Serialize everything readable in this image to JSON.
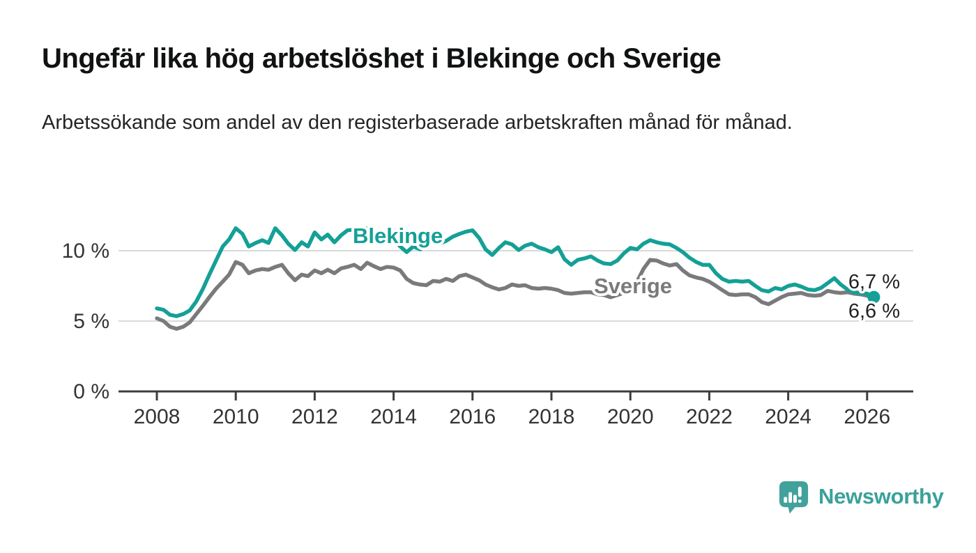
{
  "header": {
    "title": "Ungefär lika hög arbetslöshet i Blekinge och Sverige",
    "subtitle": "Arbetssökande som andel av den registerbaserade arbetskraften månad för månad."
  },
  "footer": {
    "brand": "Newsworthy",
    "logo_icon": "newsworthy-speech-bubble-bar-chart-icon"
  },
  "colors": {
    "blekinge_teal": "#14a096",
    "sverige_gray": "#7a7a7c",
    "grid": "#d9d9d9",
    "axis": "#3d3d3d",
    "tick_text": "#333333",
    "end_label_text": "#222222",
    "brand_teal": "#3aa19a",
    "background": "#ffffff"
  },
  "chart_data": {
    "type": "line",
    "title": "Ungefär lika hög arbetslöshet i Blekinge och Sverige",
    "xlabel": "",
    "ylabel": "Arbetssökande som andel av den registerbaserade arbetskraften",
    "x_unit": "decimal year (monthly/bimonthly samples)",
    "grid": "horizontal",
    "legend_position": "inline-labels",
    "x_axis": {
      "range": [
        2007.0,
        2027.2
      ],
      "ticks": [
        2008,
        2010,
        2012,
        2014,
        2016,
        2018,
        2020,
        2022,
        2024,
        2026
      ]
    },
    "y_axis": {
      "range": [
        0,
        12.5
      ],
      "unit": "%",
      "ticks": [
        {
          "v": 0,
          "label": "0 %"
        },
        {
          "v": 5,
          "label": "5 %"
        },
        {
          "v": 10,
          "label": "10 %"
        }
      ]
    },
    "series": [
      {
        "name": "Sverige",
        "color": "#7a7a7c",
        "end_label": "6,6 %",
        "end_value": 6.6,
        "end_dot": false,
        "points": [
          [
            2008.0,
            5.2
          ],
          [
            2008.17,
            5.0
          ],
          [
            2008.33,
            4.6
          ],
          [
            2008.5,
            4.45
          ],
          [
            2008.67,
            4.6
          ],
          [
            2008.83,
            4.9
          ],
          [
            2009.0,
            5.5
          ],
          [
            2009.17,
            6.1
          ],
          [
            2009.33,
            6.7
          ],
          [
            2009.5,
            7.3
          ],
          [
            2009.67,
            7.8
          ],
          [
            2009.83,
            8.3
          ],
          [
            2010.0,
            9.2
          ],
          [
            2010.17,
            9.0
          ],
          [
            2010.33,
            8.4
          ],
          [
            2010.5,
            8.6
          ],
          [
            2010.67,
            8.7
          ],
          [
            2010.83,
            8.65
          ],
          [
            2011.0,
            8.85
          ],
          [
            2011.17,
            9.0
          ],
          [
            2011.33,
            8.4
          ],
          [
            2011.5,
            7.9
          ],
          [
            2011.67,
            8.3
          ],
          [
            2011.83,
            8.2
          ],
          [
            2012.0,
            8.6
          ],
          [
            2012.17,
            8.4
          ],
          [
            2012.33,
            8.65
          ],
          [
            2012.5,
            8.4
          ],
          [
            2012.67,
            8.75
          ],
          [
            2012.83,
            8.85
          ],
          [
            2013.0,
            9.0
          ],
          [
            2013.17,
            8.7
          ],
          [
            2013.33,
            9.15
          ],
          [
            2013.5,
            8.9
          ],
          [
            2013.67,
            8.7
          ],
          [
            2013.83,
            8.85
          ],
          [
            2014.0,
            8.8
          ],
          [
            2014.17,
            8.6
          ],
          [
            2014.33,
            8.0
          ],
          [
            2014.5,
            7.7
          ],
          [
            2014.67,
            7.6
          ],
          [
            2014.83,
            7.55
          ],
          [
            2015.0,
            7.85
          ],
          [
            2015.17,
            7.8
          ],
          [
            2015.33,
            8.0
          ],
          [
            2015.5,
            7.85
          ],
          [
            2015.67,
            8.2
          ],
          [
            2015.83,
            8.3
          ],
          [
            2016.0,
            8.1
          ],
          [
            2016.17,
            7.9
          ],
          [
            2016.33,
            7.6
          ],
          [
            2016.5,
            7.4
          ],
          [
            2016.67,
            7.25
          ],
          [
            2016.83,
            7.35
          ],
          [
            2017.0,
            7.6
          ],
          [
            2017.17,
            7.5
          ],
          [
            2017.33,
            7.55
          ],
          [
            2017.5,
            7.35
          ],
          [
            2017.67,
            7.3
          ],
          [
            2017.83,
            7.35
          ],
          [
            2018.0,
            7.3
          ],
          [
            2018.17,
            7.2
          ],
          [
            2018.33,
            7.0
          ],
          [
            2018.5,
            6.95
          ],
          [
            2018.67,
            7.0
          ],
          [
            2018.83,
            7.05
          ],
          [
            2019.0,
            7.05
          ],
          [
            2019.17,
            6.9
          ],
          [
            2019.33,
            6.85
          ],
          [
            2019.5,
            6.7
          ],
          [
            2019.67,
            6.85
          ],
          [
            2019.83,
            7.0
          ],
          [
            2020.0,
            7.4
          ],
          [
            2020.17,
            7.8
          ],
          [
            2020.33,
            8.7
          ],
          [
            2020.5,
            9.35
          ],
          [
            2020.67,
            9.3
          ],
          [
            2020.83,
            9.1
          ],
          [
            2021.0,
            8.95
          ],
          [
            2021.17,
            9.05
          ],
          [
            2021.33,
            8.6
          ],
          [
            2021.5,
            8.25
          ],
          [
            2021.67,
            8.1
          ],
          [
            2021.83,
            8.0
          ],
          [
            2022.0,
            7.8
          ],
          [
            2022.17,
            7.5
          ],
          [
            2022.33,
            7.2
          ],
          [
            2022.5,
            6.9
          ],
          [
            2022.67,
            6.85
          ],
          [
            2022.83,
            6.9
          ],
          [
            2023.0,
            6.9
          ],
          [
            2023.17,
            6.7
          ],
          [
            2023.33,
            6.35
          ],
          [
            2023.5,
            6.2
          ],
          [
            2023.67,
            6.45
          ],
          [
            2023.83,
            6.7
          ],
          [
            2024.0,
            6.9
          ],
          [
            2024.17,
            6.95
          ],
          [
            2024.33,
            7.0
          ],
          [
            2024.5,
            6.85
          ],
          [
            2024.67,
            6.8
          ],
          [
            2024.83,
            6.85
          ],
          [
            2025.0,
            7.15
          ],
          [
            2025.17,
            7.05
          ],
          [
            2025.33,
            7.0
          ],
          [
            2025.5,
            7.05
          ],
          [
            2025.67,
            6.95
          ],
          [
            2025.83,
            6.9
          ],
          [
            2026.0,
            6.8
          ],
          [
            2026.17,
            6.6
          ]
        ]
      },
      {
        "name": "Blekinge",
        "color": "#14a096",
        "end_label": "6,7 %",
        "end_value": 6.7,
        "end_dot": true,
        "points": [
          [
            2008.0,
            5.9
          ],
          [
            2008.17,
            5.8
          ],
          [
            2008.33,
            5.45
          ],
          [
            2008.5,
            5.35
          ],
          [
            2008.67,
            5.5
          ],
          [
            2008.83,
            5.75
          ],
          [
            2009.0,
            6.4
          ],
          [
            2009.17,
            7.3
          ],
          [
            2009.33,
            8.3
          ],
          [
            2009.5,
            9.3
          ],
          [
            2009.67,
            10.3
          ],
          [
            2009.83,
            10.8
          ],
          [
            2010.0,
            11.6
          ],
          [
            2010.17,
            11.2
          ],
          [
            2010.33,
            10.3
          ],
          [
            2010.5,
            10.55
          ],
          [
            2010.67,
            10.75
          ],
          [
            2010.83,
            10.55
          ],
          [
            2011.0,
            11.6
          ],
          [
            2011.17,
            11.1
          ],
          [
            2011.33,
            10.5
          ],
          [
            2011.5,
            10.05
          ],
          [
            2011.67,
            10.6
          ],
          [
            2011.83,
            10.3
          ],
          [
            2012.0,
            11.3
          ],
          [
            2012.17,
            10.8
          ],
          [
            2012.33,
            11.15
          ],
          [
            2012.5,
            10.6
          ],
          [
            2012.67,
            11.1
          ],
          [
            2012.83,
            11.45
          ],
          [
            2013.0,
            11.5
          ],
          [
            2013.17,
            11.0
          ],
          [
            2013.33,
            11.6
          ],
          [
            2013.5,
            11.3
          ],
          [
            2013.67,
            11.0
          ],
          [
            2013.83,
            11.1
          ],
          [
            2014.0,
            10.85
          ],
          [
            2014.17,
            10.3
          ],
          [
            2014.33,
            9.9
          ],
          [
            2014.5,
            10.3
          ],
          [
            2014.67,
            10.1
          ],
          [
            2014.83,
            10.25
          ],
          [
            2015.0,
            10.8
          ],
          [
            2015.17,
            10.5
          ],
          [
            2015.33,
            10.7
          ],
          [
            2015.5,
            11.0
          ],
          [
            2015.67,
            11.2
          ],
          [
            2015.83,
            11.35
          ],
          [
            2016.0,
            11.45
          ],
          [
            2016.17,
            10.9
          ],
          [
            2016.33,
            10.1
          ],
          [
            2016.5,
            9.7
          ],
          [
            2016.67,
            10.2
          ],
          [
            2016.83,
            10.6
          ],
          [
            2017.0,
            10.45
          ],
          [
            2017.17,
            10.05
          ],
          [
            2017.33,
            10.35
          ],
          [
            2017.5,
            10.5
          ],
          [
            2017.67,
            10.25
          ],
          [
            2017.83,
            10.1
          ],
          [
            2018.0,
            9.9
          ],
          [
            2018.17,
            10.25
          ],
          [
            2018.33,
            9.4
          ],
          [
            2018.5,
            9.0
          ],
          [
            2018.67,
            9.35
          ],
          [
            2018.83,
            9.45
          ],
          [
            2019.0,
            9.6
          ],
          [
            2019.17,
            9.3
          ],
          [
            2019.33,
            9.1
          ],
          [
            2019.5,
            9.05
          ],
          [
            2019.67,
            9.3
          ],
          [
            2019.83,
            9.8
          ],
          [
            2020.0,
            10.2
          ],
          [
            2020.17,
            10.1
          ],
          [
            2020.33,
            10.5
          ],
          [
            2020.5,
            10.75
          ],
          [
            2020.67,
            10.6
          ],
          [
            2020.83,
            10.5
          ],
          [
            2021.0,
            10.45
          ],
          [
            2021.17,
            10.2
          ],
          [
            2021.33,
            9.9
          ],
          [
            2021.5,
            9.5
          ],
          [
            2021.67,
            9.2
          ],
          [
            2021.83,
            9.0
          ],
          [
            2022.0,
            9.0
          ],
          [
            2022.17,
            8.4
          ],
          [
            2022.33,
            8.0
          ],
          [
            2022.5,
            7.8
          ],
          [
            2022.67,
            7.85
          ],
          [
            2022.83,
            7.8
          ],
          [
            2023.0,
            7.85
          ],
          [
            2023.17,
            7.5
          ],
          [
            2023.33,
            7.2
          ],
          [
            2023.5,
            7.1
          ],
          [
            2023.67,
            7.35
          ],
          [
            2023.83,
            7.25
          ],
          [
            2024.0,
            7.5
          ],
          [
            2024.17,
            7.6
          ],
          [
            2024.33,
            7.45
          ],
          [
            2024.5,
            7.25
          ],
          [
            2024.67,
            7.2
          ],
          [
            2024.83,
            7.35
          ],
          [
            2025.0,
            7.7
          ],
          [
            2025.17,
            8.05
          ],
          [
            2025.33,
            7.6
          ],
          [
            2025.5,
            7.25
          ],
          [
            2025.67,
            7.05
          ],
          [
            2025.83,
            7.0
          ],
          [
            2026.0,
            6.95
          ],
          [
            2026.17,
            6.7
          ]
        ]
      }
    ]
  }
}
